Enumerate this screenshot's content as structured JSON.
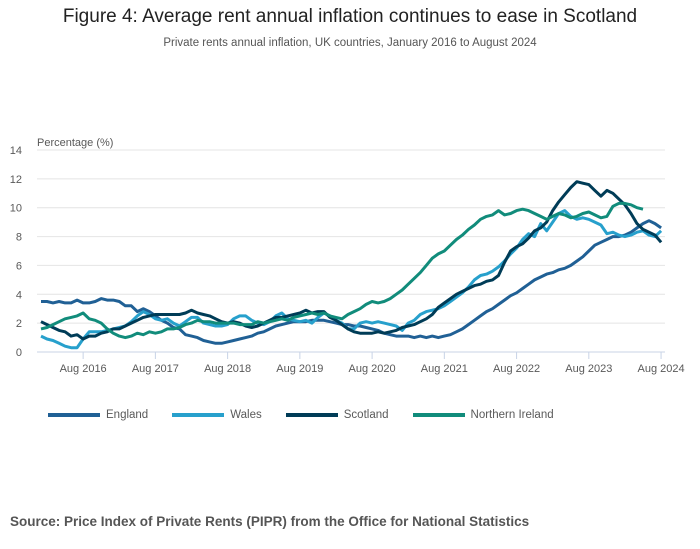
{
  "chart_data": {
    "type": "line",
    "title": "Figure 4: Average rent annual inflation continues to ease in Scotland",
    "subtitle": "Private rents annual inflation, UK countries, January 2016 to August 2024",
    "ylabel": "Percentage (%)",
    "xlabel": "",
    "ylim": [
      0,
      14
    ],
    "yticks": [
      "0",
      "2",
      "4",
      "6",
      "8",
      "10",
      "12",
      "14"
    ],
    "xticks": [
      "Aug 2016",
      "Aug 2017",
      "Aug 2018",
      "Aug 2019",
      "Aug 2020",
      "Aug 2021",
      "Aug 2022",
      "Aug 2023",
      "Aug 2024"
    ],
    "x_start": "Jan 2016",
    "x_end": "Aug 2024",
    "grid": true,
    "legend_position": "bottom",
    "series": [
      {
        "name": "England",
        "color": "#206095",
        "values": [
          3.5,
          3.5,
          3.4,
          3.5,
          3.4,
          3.4,
          3.6,
          3.4,
          3.4,
          3.5,
          3.7,
          3.6,
          3.6,
          3.5,
          3.2,
          3.2,
          2.8,
          3.0,
          2.8,
          2.5,
          2.2,
          2.0,
          1.7,
          1.6,
          1.2,
          1.1,
          1.0,
          0.8,
          0.7,
          0.6,
          0.6,
          0.7,
          0.8,
          0.9,
          1.0,
          1.1,
          1.3,
          1.4,
          1.6,
          1.8,
          1.9,
          2.0,
          2.1,
          2.1,
          2.1,
          2.2,
          2.2,
          2.2,
          2.1,
          2.0,
          1.9,
          1.9,
          1.8,
          1.8,
          1.7,
          1.6,
          1.5,
          1.3,
          1.2,
          1.1,
          1.1,
          1.1,
          1.0,
          1.1,
          1.0,
          1.1,
          1.0,
          1.1,
          1.2,
          1.4,
          1.6,
          1.9,
          2.2,
          2.5,
          2.8,
          3.0,
          3.3,
          3.6,
          3.9,
          4.1,
          4.4,
          4.7,
          5.0,
          5.2,
          5.4,
          5.5,
          5.7,
          5.8,
          6.0,
          6.3,
          6.6,
          7.0,
          7.4,
          7.6,
          7.8,
          8.0,
          8.0,
          8.1,
          8.3,
          8.6,
          8.9,
          9.1,
          8.9,
          8.6
        ]
      },
      {
        "name": "Wales",
        "color": "#27a0cc",
        "values": [
          1.1,
          0.9,
          0.8,
          0.6,
          0.4,
          0.3,
          0.3,
          0.9,
          1.4,
          1.4,
          1.4,
          1.5,
          1.6,
          1.7,
          1.8,
          2.1,
          2.5,
          2.8,
          2.6,
          2.3,
          2.2,
          2.3,
          2.0,
          1.8,
          2.1,
          2.4,
          2.4,
          2.0,
          1.9,
          1.8,
          1.8,
          1.9,
          2.3,
          2.5,
          2.5,
          2.2,
          2.0,
          1.9,
          2.1,
          2.5,
          2.7,
          2.3,
          2.2,
          2.1,
          2.2,
          2.0,
          2.4,
          2.7,
          2.5,
          2.2,
          2.0,
          1.6,
          1.6,
          2.0,
          2.1,
          2.0,
          2.1,
          2.0,
          1.9,
          1.8,
          1.5,
          2.0,
          2.2,
          2.6,
          2.8,
          2.9,
          3.0,
          3.2,
          3.5,
          3.8,
          4.1,
          4.5,
          5.0,
          5.3,
          5.4,
          5.6,
          5.9,
          6.3,
          6.8,
          7.2,
          7.8,
          8.2,
          8.0,
          8.9,
          8.4,
          9.0,
          9.6,
          9.8,
          9.4,
          9.2,
          9.3,
          9.2,
          9.0,
          8.8,
          8.2,
          8.3,
          8.1,
          8.0,
          8.1,
          8.3,
          8.4,
          8.1,
          8.0,
          8.4
        ]
      },
      {
        "name": "Scotland",
        "color": "#003c57",
        "values": [
          2.1,
          1.9,
          1.7,
          1.5,
          1.4,
          1.1,
          1.2,
          0.9,
          1.1,
          1.1,
          1.3,
          1.4,
          1.6,
          1.6,
          1.8,
          2.0,
          2.2,
          2.4,
          2.5,
          2.6,
          2.6,
          2.6,
          2.6,
          2.6,
          2.7,
          2.9,
          2.7,
          2.6,
          2.5,
          2.3,
          2.1,
          2.0,
          2.1,
          2.0,
          1.8,
          1.7,
          1.8,
          2.0,
          2.2,
          2.4,
          2.4,
          2.5,
          2.6,
          2.7,
          2.9,
          2.7,
          2.8,
          2.8,
          2.4,
          2.2,
          1.9,
          1.6,
          1.4,
          1.3,
          1.3,
          1.3,
          1.4,
          1.3,
          1.4,
          1.5,
          1.7,
          1.8,
          1.9,
          2.1,
          2.3,
          2.6,
          3.1,
          3.4,
          3.7,
          4.0,
          4.2,
          4.4,
          4.6,
          4.7,
          4.9,
          5.0,
          5.3,
          6.2,
          7.0,
          7.3,
          7.5,
          7.9,
          8.4,
          8.6,
          9.0,
          9.8,
          10.4,
          10.9,
          11.4,
          11.8,
          11.7,
          11.6,
          11.2,
          10.8,
          11.2,
          11.0,
          10.6,
          10.2,
          9.6,
          8.9,
          8.5,
          8.3,
          8.1,
          7.6
        ]
      },
      {
        "name": "Northern Ireland",
        "color": "#118c7b",
        "values": [
          1.6,
          1.7,
          1.9,
          2.1,
          2.3,
          2.4,
          2.5,
          2.7,
          2.3,
          2.2,
          2.0,
          1.6,
          1.3,
          1.1,
          1.0,
          1.1,
          1.3,
          1.2,
          1.4,
          1.3,
          1.4,
          1.6,
          1.6,
          1.7,
          1.9,
          2.0,
          2.2,
          2.1,
          2.1,
          2.0,
          2.0,
          2.0,
          2.0,
          1.9,
          1.9,
          1.9,
          2.1,
          2.0,
          2.1,
          2.2,
          2.3,
          2.2,
          2.4,
          2.5,
          2.6,
          2.7,
          2.6,
          2.7,
          2.5,
          2.4,
          2.3,
          2.6,
          2.8,
          3.0,
          3.3,
          3.5,
          3.4,
          3.5,
          3.7,
          4.0,
          4.3,
          4.7,
          5.1,
          5.5,
          6.0,
          6.5,
          6.8,
          7.0,
          7.4,
          7.8,
          8.1,
          8.5,
          8.8,
          9.2,
          9.4,
          9.5,
          9.8,
          9.5,
          9.6,
          9.8,
          9.9,
          9.8,
          9.6,
          9.4,
          9.2,
          9.4,
          9.6,
          9.5,
          9.3,
          9.4,
          9.6,
          9.7,
          9.5,
          9.3,
          9.4,
          10.1,
          10.3,
          10.3,
          10.2,
          10.0,
          9.9
        ]
      }
    ]
  },
  "footer": {
    "source": "Source: Price Index of Private Rents (PIPR) from the Office for National Statistics"
  }
}
